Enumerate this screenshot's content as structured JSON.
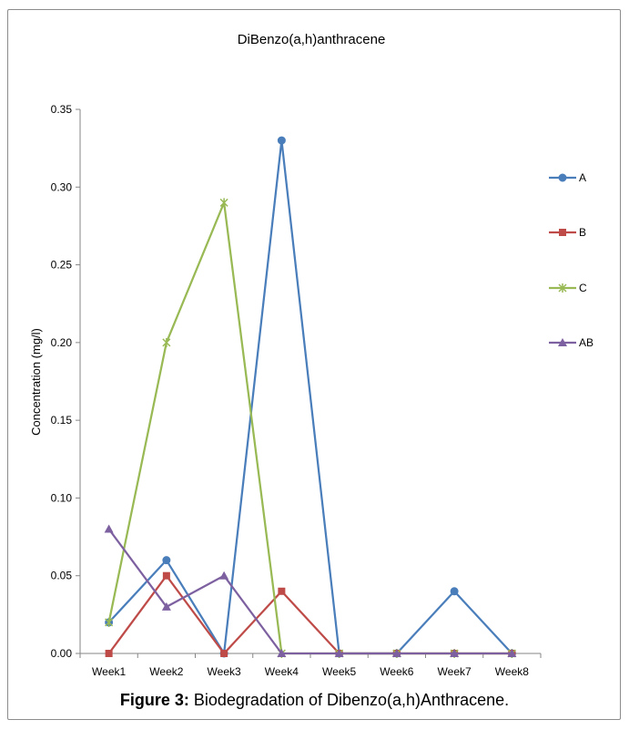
{
  "caption": {
    "label": "Figure 3:",
    "text": " Biodegradation of Dibenzo(a,h)Anthracene."
  },
  "chart_data": {
    "type": "line",
    "title": "DiBenzo(a,h)anthracene",
    "xlabel": "",
    "ylabel": "Concentration (mg/l)",
    "categories": [
      "Week1",
      "Week2",
      "Week3",
      "Week4",
      "Week5",
      "Week6",
      "Week7",
      "Week8"
    ],
    "ylim": [
      0,
      0.35
    ],
    "yticks": [
      "0.00",
      "0.05",
      "0.10",
      "0.15",
      "0.20",
      "0.25",
      "0.30",
      "0.35"
    ],
    "grid": false,
    "legend_position": "right",
    "series": [
      {
        "name": "A",
        "color": "#4a7ebb",
        "marker": "circle",
        "values": [
          0.02,
          0.06,
          0.0,
          0.33,
          0.0,
          0.0,
          0.04,
          0.0
        ]
      },
      {
        "name": "B",
        "color": "#be4b48",
        "marker": "square",
        "values": [
          0.0,
          0.05,
          0.0,
          0.04,
          0.0,
          0.0,
          0.0,
          0.0
        ]
      },
      {
        "name": "C",
        "color": "#98b954",
        "marker": "star",
        "values": [
          0.02,
          0.2,
          0.29,
          0.0,
          0.0,
          0.0,
          0.0,
          0.0
        ]
      },
      {
        "name": "AB",
        "color": "#7d60a0",
        "marker": "triangle",
        "values": [
          0.08,
          0.03,
          0.05,
          0.0,
          0.0,
          0.0,
          0.0,
          0.0
        ]
      }
    ]
  }
}
